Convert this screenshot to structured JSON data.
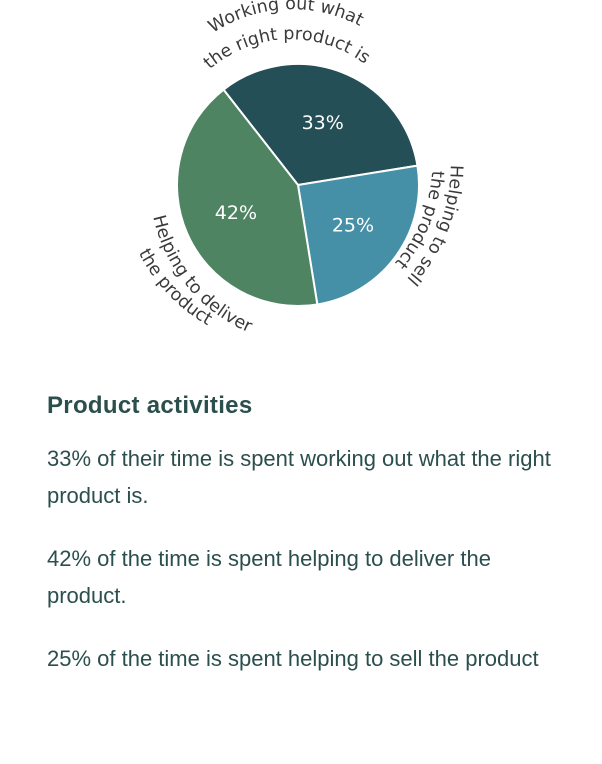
{
  "chart_data": {
    "type": "pie",
    "slices": [
      {
        "label": "Working out what the right product is",
        "value": 33,
        "display": "33%",
        "color": "#244f56"
      },
      {
        "label": "Helping to sell the product",
        "value": 25,
        "display": "25%",
        "color": "#4690a7"
      },
      {
        "label": "Helping to deliver the product",
        "value": 42,
        "display": "42%",
        "color": "#4e8462"
      }
    ],
    "curved_labels": [
      {
        "line1": "Working out what",
        "line2": "the right product is"
      },
      {
        "line1": "Helping to sell",
        "line2": "the product"
      },
      {
        "line1": "Helping to deliver",
        "line2": "the product"
      }
    ]
  },
  "section": {
    "title": "Product activities",
    "paragraphs": [
      "33% of their time is spent working out what the right product is.",
      "42% of the time is spent helping to deliver the product.",
      "25% of the time is spent helping to sell the product"
    ]
  }
}
